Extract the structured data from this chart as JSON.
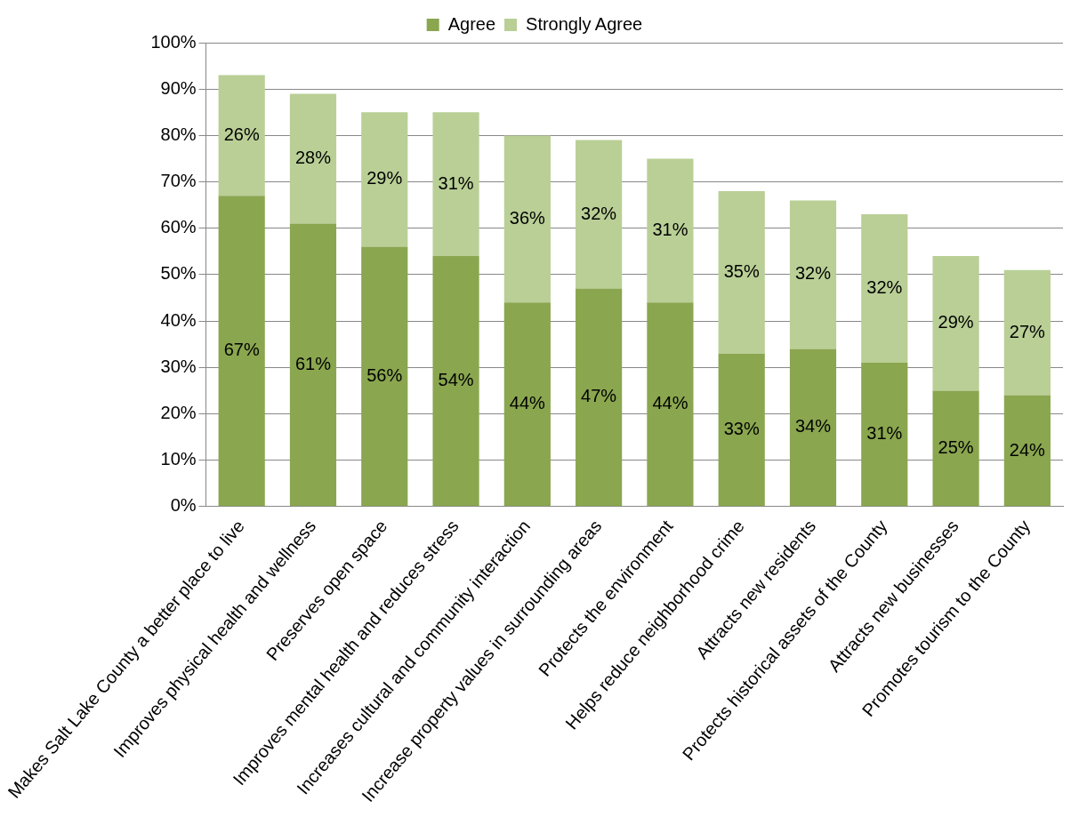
{
  "chart_data": {
    "type": "bar",
    "stacked": true,
    "categories": [
      "Makes Salt Lake County a better place to live",
      "Improves physical health and wellness",
      "Preserves open space",
      "Improves mental health and reduces stress",
      "Increases cultural and community interaction",
      "Increase property values in surrounding areas",
      "Protects the environment",
      "Helps reduce neighborhood crime",
      "Attracts new residents",
      "Protects historical assets of the County",
      "Attracts new businesses",
      "Promotes tourism to the County"
    ],
    "series": [
      {
        "name": "Agree",
        "color": "#8aa64f",
        "values": [
          67,
          61,
          56,
          54,
          44,
          47,
          44,
          33,
          34,
          31,
          25,
          24
        ],
        "value_labels": [
          "67%",
          "61%",
          "56%",
          "54%",
          "44%",
          "47%",
          "44%",
          "33%",
          "34%",
          "31%",
          "25%",
          "24%"
        ]
      },
      {
        "name": "Strongly Agree",
        "color": "#b9cf96",
        "values": [
          26,
          28,
          29,
          31,
          36,
          32,
          31,
          35,
          32,
          32,
          29,
          27
        ],
        "value_labels": [
          "26%",
          "28%",
          "29%",
          "31%",
          "36%",
          "32%",
          "31%",
          "35%",
          "32%",
          "32%",
          "29%",
          "27%"
        ]
      }
    ],
    "ylim": [
      0,
      100
    ],
    "yticks": [
      {
        "value": 0,
        "label": "0%"
      },
      {
        "value": 10,
        "label": "10%"
      },
      {
        "value": 20,
        "label": "20%"
      },
      {
        "value": 30,
        "label": "30%"
      },
      {
        "value": 40,
        "label": "40%"
      },
      {
        "value": 50,
        "label": "50%"
      },
      {
        "value": 60,
        "label": "60%"
      },
      {
        "value": 70,
        "label": "70%"
      },
      {
        "value": 80,
        "label": "80%"
      },
      {
        "value": 90,
        "label": "90%"
      },
      {
        "value": 100,
        "label": "100%"
      }
    ],
    "grid": "y",
    "legend": "top"
  }
}
